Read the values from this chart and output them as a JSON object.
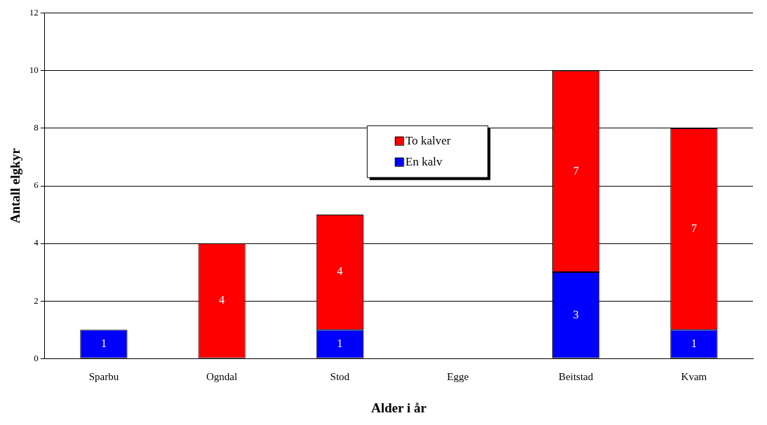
{
  "chart_data": {
    "type": "bar",
    "stacked": true,
    "xlabel": "Alder i år",
    "ylabel": "Antall elgkyr",
    "categories": [
      "Sparbu",
      "Ogndal",
      "Stod",
      "Egge",
      "Beitstad",
      "Kvam"
    ],
    "series": [
      {
        "name": "En kalv",
        "color": "#0000ff",
        "values": [
          1,
          0,
          1,
          0,
          3,
          1
        ],
        "value_labels": [
          "1",
          null,
          "1",
          null,
          "3",
          "1"
        ]
      },
      {
        "name": "To kalver",
        "color": "#ff0000",
        "values": [
          0,
          4,
          4,
          0,
          7,
          7
        ],
        "value_labels": [
          null,
          "4",
          "4",
          null,
          "7",
          "7"
        ]
      }
    ],
    "ylim": [
      0,
      12
    ],
    "yticks": [
      0,
      2,
      4,
      6,
      8,
      10,
      12
    ],
    "grid": "y",
    "legend": "center"
  }
}
